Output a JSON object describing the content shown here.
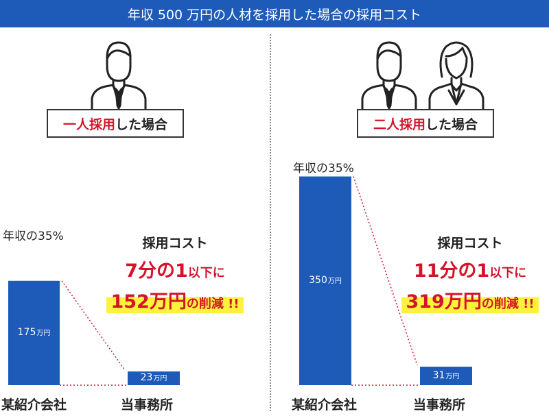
{
  "header": {
    "title": "年収 500 万円の人材を採用した場合の採用コスト"
  },
  "colors": {
    "banner": "#1e5bb8",
    "bar": "#1e5bb8",
    "accent": "#d3142a",
    "highlight": "#fff23c"
  },
  "panels": [
    {
      "scenario_em": "一人採用",
      "scenario_rest": "した場合",
      "figures": [
        "male-person-icon"
      ],
      "annotation": {
        "line1": "採用コスト",
        "line2_num": "7分の1",
        "line2_rest": "以下に",
        "line3_num": "152万円",
        "line3_rest": "の削減 !!"
      },
      "pct_label": "年収の35%"
    },
    {
      "scenario_em": "二人採用",
      "scenario_rest": "した場合",
      "figures": [
        "male-person-icon",
        "female-person-icon"
      ],
      "annotation": {
        "line1": "採用コスト",
        "line2_num": "11分の1",
        "line2_rest": "以下に",
        "line3_num": "319万円",
        "line3_rest": "の削減 !!"
      },
      "pct_label": "年収の35%"
    }
  ],
  "chart_data": [
    {
      "type": "bar",
      "categories": [
        "某紹介会社",
        "当事務所"
      ],
      "values": [
        175,
        23
      ],
      "value_labels": [
        "175",
        "23"
      ],
      "unit": "万円",
      "annotation": "年収の35%"
    },
    {
      "type": "bar",
      "categories": [
        "某紹介会社",
        "当事務所"
      ],
      "values": [
        350,
        31
      ],
      "value_labels": [
        "350",
        "31"
      ],
      "unit": "万円",
      "annotation": "年収の35%"
    }
  ]
}
